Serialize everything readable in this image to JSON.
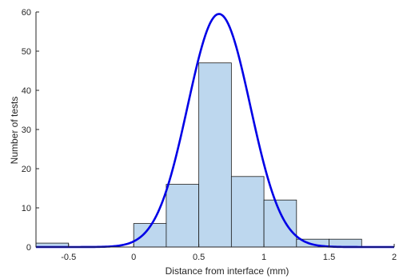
{
  "chart_data": {
    "type": "bar",
    "subtype": "histogram",
    "title": "",
    "xlabel": "Distance from interface (mm)",
    "ylabel": "Number of tests",
    "xlim": [
      -0.75,
      2.0
    ],
    "ylim": [
      0,
      60
    ],
    "xticks": [
      -0.5,
      0,
      0.5,
      1,
      1.5,
      2
    ],
    "yticks": [
      0,
      10,
      20,
      30,
      40,
      50,
      60
    ],
    "bins": [
      {
        "x0": -0.75,
        "x1": -0.5,
        "count": 1
      },
      {
        "x0": -0.5,
        "x1": -0.25,
        "count": 0
      },
      {
        "x0": -0.25,
        "x1": 0.0,
        "count": 0
      },
      {
        "x0": 0.0,
        "x1": 0.25,
        "count": 6
      },
      {
        "x0": 0.25,
        "x1": 0.5,
        "count": 16
      },
      {
        "x0": 0.5,
        "x1": 0.75,
        "count": 47
      },
      {
        "x0": 0.75,
        "x1": 1.0,
        "count": 18
      },
      {
        "x0": 1.0,
        "x1": 1.25,
        "count": 12
      },
      {
        "x0": 1.25,
        "x1": 1.5,
        "count": 2
      },
      {
        "x0": 1.5,
        "x1": 1.75,
        "count": 2
      }
    ],
    "fit_curve": {
      "kind": "normal",
      "mean": 0.655,
      "sigma": 0.24,
      "peak": 59.5,
      "x_range": [
        -0.75,
        2.0
      ]
    },
    "grid": false,
    "colors": {
      "bar_fill": "#bdd7ee",
      "bar_edge": "#1a1a1a",
      "curve": "#0000e6",
      "axis": "#262626"
    }
  }
}
